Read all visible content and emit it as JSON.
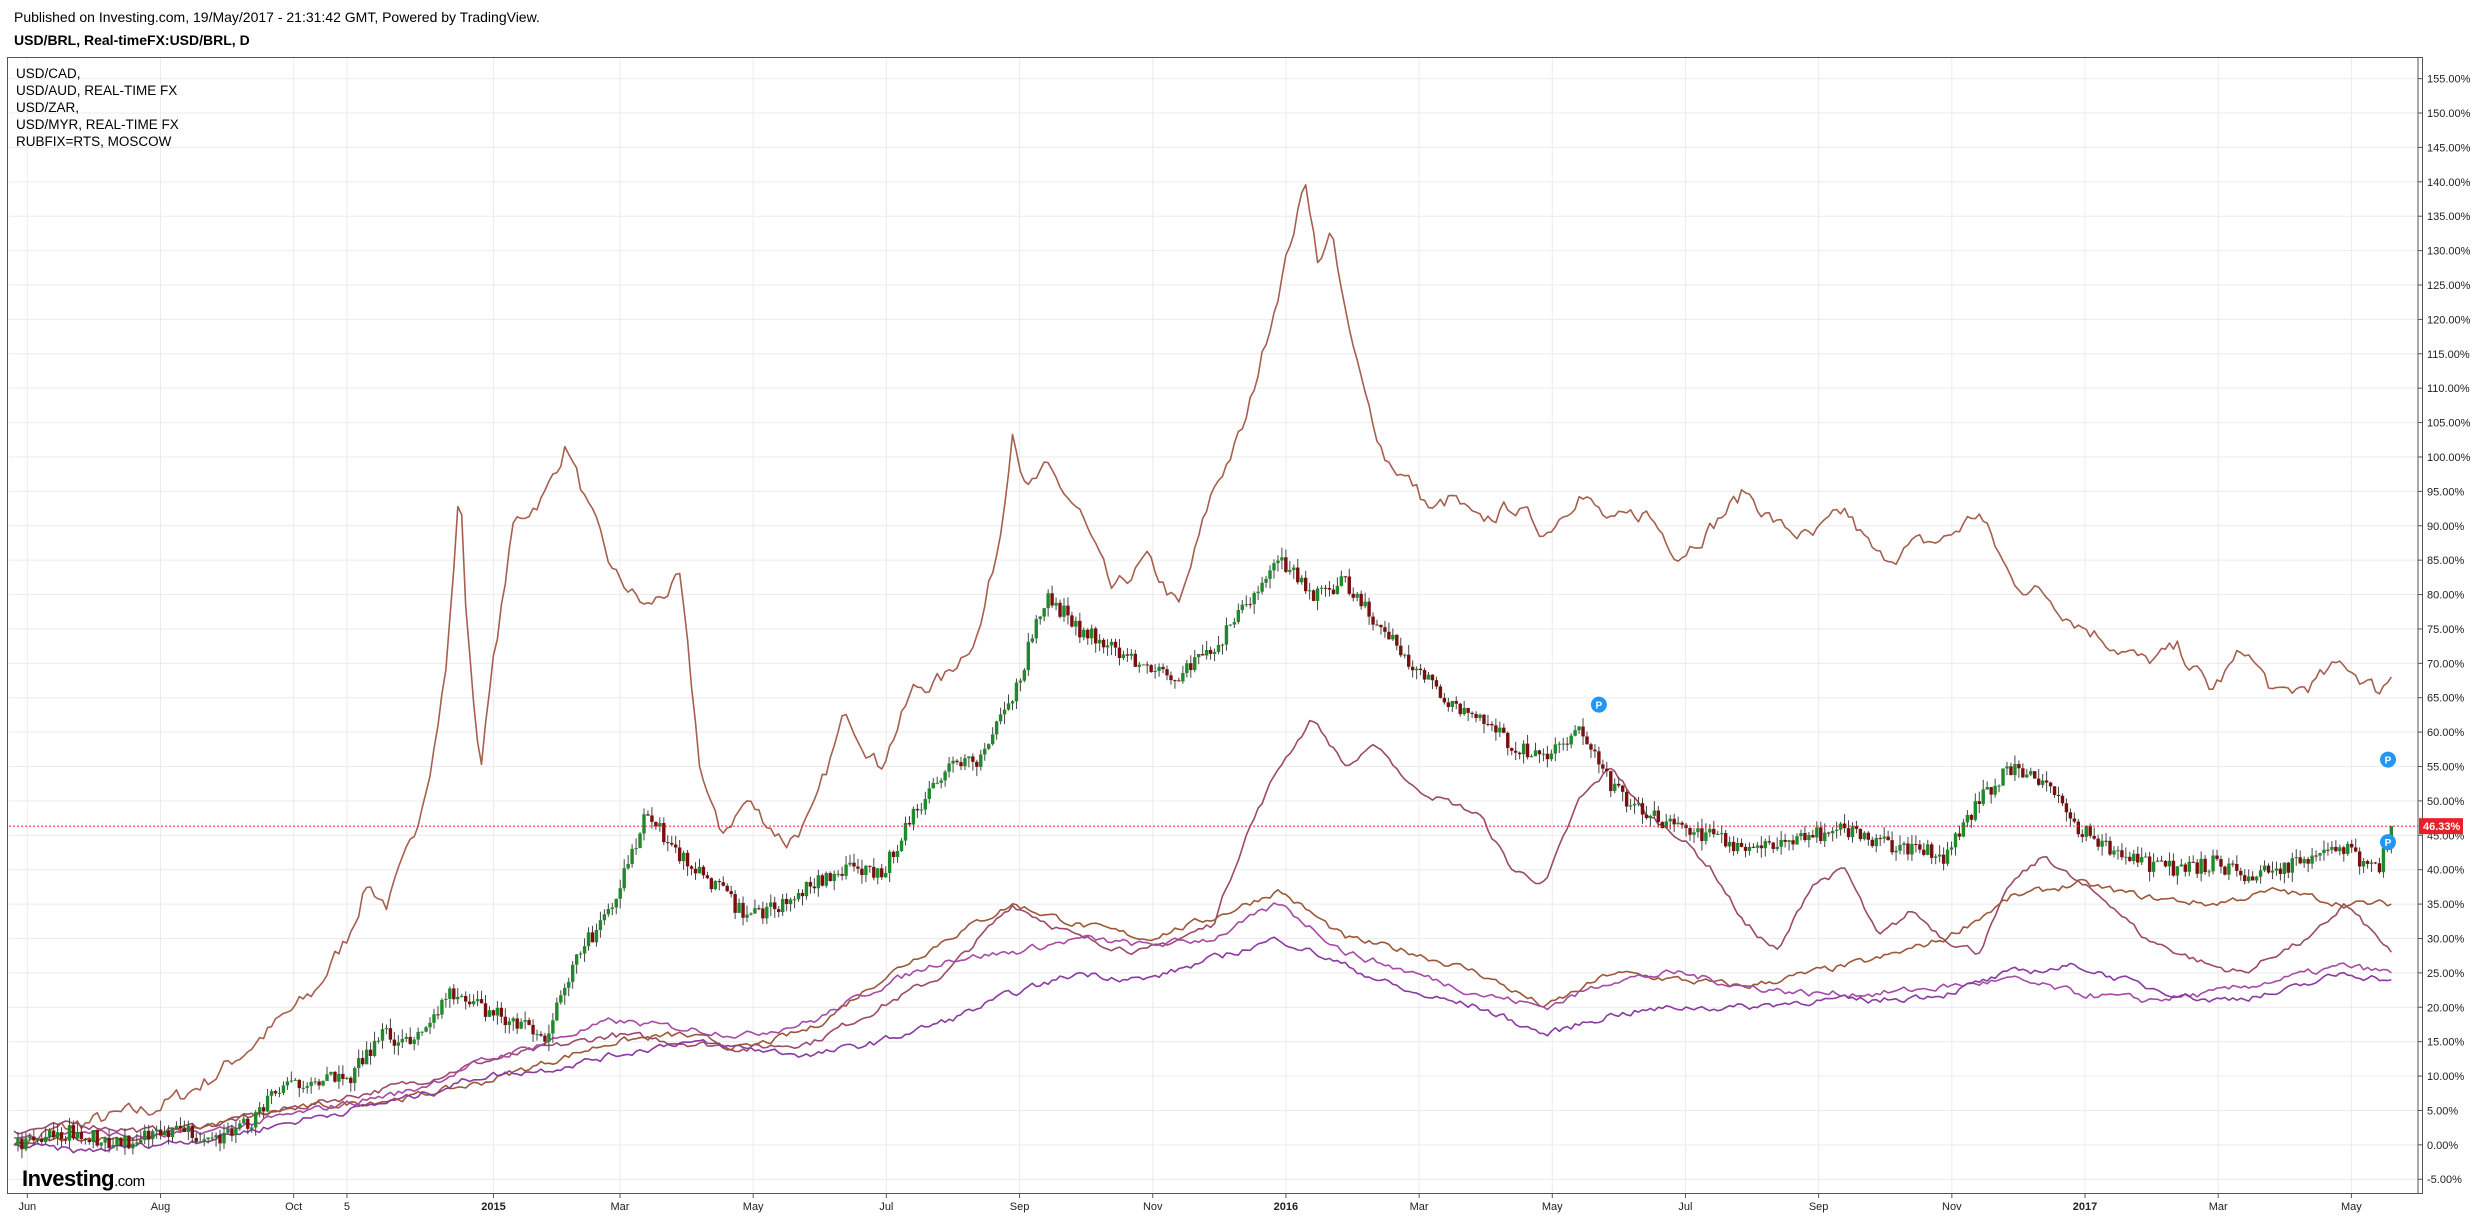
{
  "header": {
    "published": "Published on Investing.com, 19/May/2017 - 21:31:42 GMT, Powered by TradingView.",
    "title": "USD/BRL, Real-timeFX:USD/BRL, D"
  },
  "legend": [
    "USD/CAD,",
    "USD/AUD, REAL-TIME FX",
    "USD/ZAR,",
    "USD/MYR, REAL-TIME FX",
    "RUBFIX=RTS, MOSCOW"
  ],
  "logo": {
    "brand": "Investing",
    "suffix": ".com"
  },
  "colors": {
    "up": "#1f8a2a",
    "down": "#7a0f0f",
    "wick": "#444444",
    "rub": "#a65f4f",
    "zar": "#9b4a6a",
    "cad": "#9b5838",
    "myr": "#a64aa6",
    "aud": "#8a3aa0",
    "current": "#e8202a",
    "marker": "#2196f3",
    "grid": "#ececec"
  },
  "chart_data": {
    "type": "line",
    "current_value_label": "46.33%",
    "current_value": 46.33,
    "ylim": [
      -7,
      158
    ],
    "y_ticks": [
      -5,
      0,
      5,
      10,
      15,
      20,
      25,
      30,
      35,
      40,
      45,
      50,
      55,
      60,
      65,
      70,
      75,
      80,
      85,
      90,
      95,
      100,
      105,
      110,
      115,
      120,
      125,
      130,
      135,
      140,
      145,
      150,
      155
    ],
    "y_tick_suffix": "%",
    "x_ticks": [
      {
        "label": "Jun",
        "t": 0.2
      },
      {
        "label": "Aug",
        "t": 2.2
      },
      {
        "label": "Oct",
        "t": 4.2
      },
      {
        "label": "5",
        "t": 5.0
      },
      {
        "label": "2015",
        "t": 7.2,
        "bold": true
      },
      {
        "label": "Mar",
        "t": 9.1
      },
      {
        "label": "May",
        "t": 11.1
      },
      {
        "label": "Jul",
        "t": 13.1
      },
      {
        "label": "Sep",
        "t": 15.1
      },
      {
        "label": "Nov",
        "t": 17.1
      },
      {
        "label": "2016",
        "t": 19.1,
        "bold": true
      },
      {
        "label": "Mar",
        "t": 21.1
      },
      {
        "label": "May",
        "t": 23.1
      },
      {
        "label": "Jul",
        "t": 25.1
      },
      {
        "label": "Sep",
        "t": 27.1
      },
      {
        "label": "Nov",
        "t": 29.1
      },
      {
        "label": "2017",
        "t": 31.1,
        "bold": true
      },
      {
        "label": "Mar",
        "t": 33.1
      },
      {
        "label": "May",
        "t": 35.1
      }
    ],
    "x_range": [
      0,
      35.8
    ],
    "markers": [
      {
        "label": "P",
        "t": 23.8,
        "v": 64
      },
      {
        "label": "P",
        "t": 35.65,
        "v": 56
      },
      {
        "label": "P",
        "t": 35.65,
        "v": 44
      }
    ],
    "candles_series": {
      "name": "USD/BRL",
      "t": [
        0,
        1,
        1.5,
        2,
        2.5,
        3,
        3.5,
        4,
        4.5,
        5,
        5.5,
        6,
        6.5,
        7,
        7.5,
        8,
        8.5,
        9,
        9.5,
        10,
        10.5,
        11,
        11.5,
        12,
        12.5,
        13,
        13.5,
        14,
        14.5,
        15,
        15.5,
        16,
        16.5,
        17,
        17.5,
        18,
        18.5,
        19,
        19.5,
        20,
        20.5,
        21,
        21.5,
        22,
        22.5,
        23,
        23.5,
        24,
        24.5,
        25,
        25.5,
        26,
        26.5,
        27,
        27.5,
        28,
        28.5,
        29,
        29.5,
        30,
        30.5,
        31,
        31.5,
        32,
        32.5,
        33,
        33.5,
        34,
        34.5,
        35,
        35.5,
        35.7
      ],
      "v": [
        0,
        2,
        0,
        1,
        2,
        1,
        3,
        8,
        10,
        9,
        16,
        15,
        22,
        20,
        18,
        16,
        28,
        35,
        48,
        42,
        38,
        33,
        35,
        38,
        40,
        39,
        48,
        55,
        56,
        65,
        80,
        75,
        72,
        70,
        68,
        72,
        78,
        85,
        80,
        82,
        75,
        70,
        65,
        62,
        58,
        56,
        60,
        52,
        48,
        46,
        45,
        43,
        44,
        45,
        46,
        44,
        43,
        42,
        50,
        55,
        52,
        46,
        43,
        41,
        40,
        41,
        39,
        40,
        42,
        43,
        40,
        46.3
      ]
    },
    "series": [
      {
        "name": "RUBFIX=RTS, MOSCOW",
        "color_key": "rub",
        "t": [
          0,
          1,
          2,
          2.5,
          3,
          3.5,
          4,
          4.5,
          5,
          5.3,
          5.6,
          6,
          6.3,
          6.5,
          6.7,
          6.8,
          7,
          7.2,
          7.5,
          8,
          8.3,
          8.6,
          9,
          9.5,
          10,
          10.3,
          10.6,
          11,
          11.3,
          11.6,
          12,
          12.5,
          13,
          13.5,
          14,
          14.5,
          14.8,
          15,
          15.2,
          15.5,
          16,
          16.5,
          17,
          17.5,
          18,
          18.5,
          19,
          19.4,
          19.6,
          19.8,
          20,
          20.3,
          20.6,
          21,
          21.3,
          21.6,
          22,
          22.5,
          23,
          23.5,
          24,
          24.5,
          25,
          25.5,
          26,
          26.5,
          27,
          27.5,
          28,
          28.5,
          29,
          29.5,
          30,
          30.5,
          31,
          31.5,
          32,
          32.5,
          33,
          33.5,
          34,
          34.5,
          35,
          35.5,
          35.7
        ],
        "v": [
          0,
          3,
          5,
          7,
          10,
          14,
          18,
          22,
          30,
          38,
          35,
          44,
          58,
          70,
          97,
          75,
          55,
          70,
          90,
          95,
          102,
          93,
          83,
          78,
          82,
          55,
          45,
          50,
          47,
          44,
          48,
          63,
          55,
          66,
          68,
          75,
          88,
          105,
          95,
          98,
          92,
          80,
          85,
          78,
          95,
          105,
          125,
          140,
          128,
          133,
          120,
          108,
          100,
          96,
          92,
          94,
          90,
          93,
          89,
          95,
          90,
          92,
          86,
          90,
          95,
          90,
          88,
          92,
          85,
          87,
          88,
          92,
          82,
          80,
          76,
          73,
          70,
          72,
          66,
          72,
          65,
          67,
          70,
          66,
          68
        ]
      },
      {
        "name": "USD/ZAR",
        "color_key": "zar",
        "t": [
          0,
          1,
          2,
          3,
          4,
          5,
          6,
          7,
          8,
          9,
          10,
          11,
          12,
          13,
          14,
          15,
          16,
          17,
          17.5,
          18,
          18.5,
          19,
          19.5,
          20,
          20.5,
          21,
          21.5,
          22,
          22.5,
          23,
          23.5,
          24,
          24.5,
          25,
          25.5,
          26,
          26.5,
          27,
          27.5,
          28,
          28.5,
          29,
          29.5,
          30,
          30.5,
          31,
          31.5,
          32,
          32.5,
          33,
          33.5,
          34,
          34.5,
          35,
          35.5,
          35.7
        ],
        "v": [
          2,
          3,
          2,
          3,
          5,
          7,
          9,
          12,
          14,
          16,
          15,
          14,
          15,
          20,
          25,
          35,
          30,
          28,
          30,
          32,
          45,
          55,
          62,
          55,
          58,
          52,
          50,
          48,
          40,
          38,
          50,
          55,
          48,
          45,
          40,
          32,
          28,
          38,
          40,
          30,
          34,
          30,
          28,
          38,
          42,
          38,
          35,
          30,
          28,
          26,
          25,
          28,
          30,
          35,
          30,
          28
        ]
      },
      {
        "name": "USD/CAD",
        "color_key": "cad",
        "t": [
          0,
          1,
          2,
          3,
          4,
          5,
          6,
          7,
          8,
          9,
          10,
          11,
          12,
          13,
          14,
          15,
          16,
          17,
          18,
          19,
          20,
          21,
          22,
          23,
          24,
          25,
          26,
          27,
          28,
          29,
          30,
          31,
          32,
          33,
          34,
          35,
          35.7
        ],
        "v": [
          0,
          1,
          1,
          3,
          5,
          6,
          7,
          9,
          12,
          15,
          16,
          14,
          17,
          24,
          30,
          35,
          32,
          30,
          33,
          37,
          30,
          28,
          25,
          20,
          25,
          24,
          23,
          25,
          27,
          30,
          36,
          38,
          36,
          35,
          37,
          35,
          35
        ]
      },
      {
        "name": "USD/MYR, REAL-TIME FX",
        "color_key": "myr",
        "t": [
          0,
          1,
          2,
          3,
          4,
          5,
          6,
          7,
          8,
          9,
          10,
          11,
          12,
          13,
          14,
          15,
          16,
          17,
          18,
          19,
          20,
          21,
          22,
          23,
          24,
          25,
          26,
          27,
          28,
          29,
          30,
          31,
          32,
          33,
          34,
          35,
          35.7
        ],
        "v": [
          1,
          2,
          1,
          2,
          4,
          6,
          8,
          12,
          15,
          18,
          17,
          16,
          18,
          23,
          27,
          28,
          30,
          29,
          30,
          35,
          28,
          25,
          22,
          20,
          24,
          25,
          23,
          22,
          22,
          23,
          24,
          22,
          21,
          22,
          24,
          26,
          25
        ]
      },
      {
        "name": "USD/AUD, REAL-TIME FX",
        "color_key": "aud",
        "t": [
          0,
          1,
          2,
          3,
          4,
          5,
          6,
          7,
          8,
          9,
          10,
          11,
          12,
          13,
          14,
          15,
          16,
          17,
          18,
          19,
          20,
          21,
          22,
          23,
          24,
          25,
          26,
          27,
          28,
          29,
          30,
          31,
          32,
          33,
          34,
          35,
          35.7
        ],
        "v": [
          0,
          -1,
          0,
          1,
          3,
          5,
          7,
          10,
          11,
          13,
          15,
          14,
          13,
          15,
          18,
          22,
          25,
          24,
          27,
          30,
          26,
          22,
          20,
          16,
          19,
          20,
          20,
          21,
          21,
          22,
          25,
          26,
          23,
          21,
          22,
          25,
          24
        ]
      }
    ]
  }
}
